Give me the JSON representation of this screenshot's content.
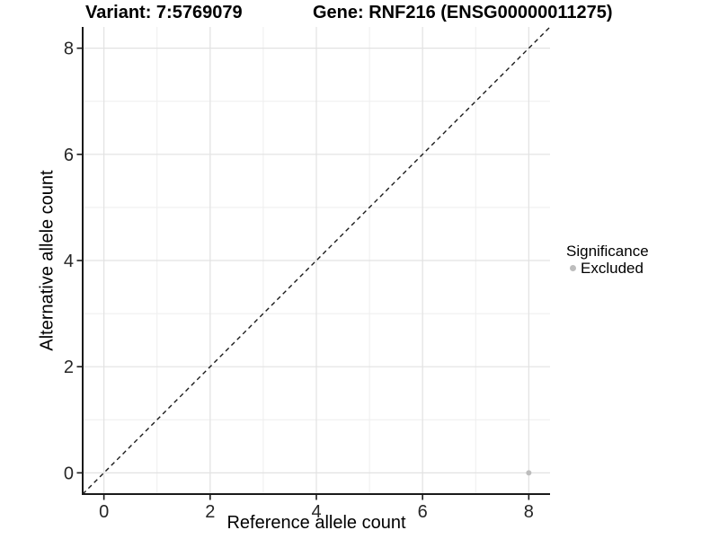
{
  "header": {
    "variant_title": "Variant: 7:5769079",
    "gene_title": "Gene: RNF216 (ENSG00000011275)"
  },
  "legend": {
    "title": "Significance",
    "items": [
      {
        "label": "Excluded",
        "color": "#bdbdbd",
        "marker": "circle-icon"
      }
    ],
    "position": "right"
  },
  "chart_data": {
    "type": "scatter",
    "title": "Variant: 7:5769079 | Gene: RNF216 (ENSG00000011275)",
    "xlabel": "Reference allele count",
    "ylabel": "Alternative allele count",
    "xlim": [
      -0.4,
      8.4
    ],
    "ylim": [
      -0.4,
      8.4
    ],
    "x_ticks": [
      0,
      2,
      4,
      6,
      8
    ],
    "y_ticks": [
      0,
      2,
      4,
      6,
      8
    ],
    "x_minor_gridlines": [
      1,
      3,
      5,
      7
    ],
    "y_minor_gridlines": [
      1,
      3,
      5,
      7
    ],
    "reference_line": {
      "slope": 1,
      "intercept": 0,
      "style": "dashed"
    },
    "series": [
      {
        "name": "Excluded",
        "color": "#bdbdbd",
        "points": [
          {
            "x": 8,
            "y": 0
          }
        ]
      }
    ],
    "legend_position": "right",
    "grid": "major gridlines at even integers, minor at odd integers, white panel background, axis lines on left and bottom only"
  },
  "colors": {
    "background": "#ffffff",
    "grid_major": "#e2e2e2",
    "grid_minor": "#eeeeee",
    "axis_line": "#1a1a1a",
    "tick_text": "#262626",
    "reference_line": "#1a1a1a",
    "point": "#bdbdbd"
  }
}
